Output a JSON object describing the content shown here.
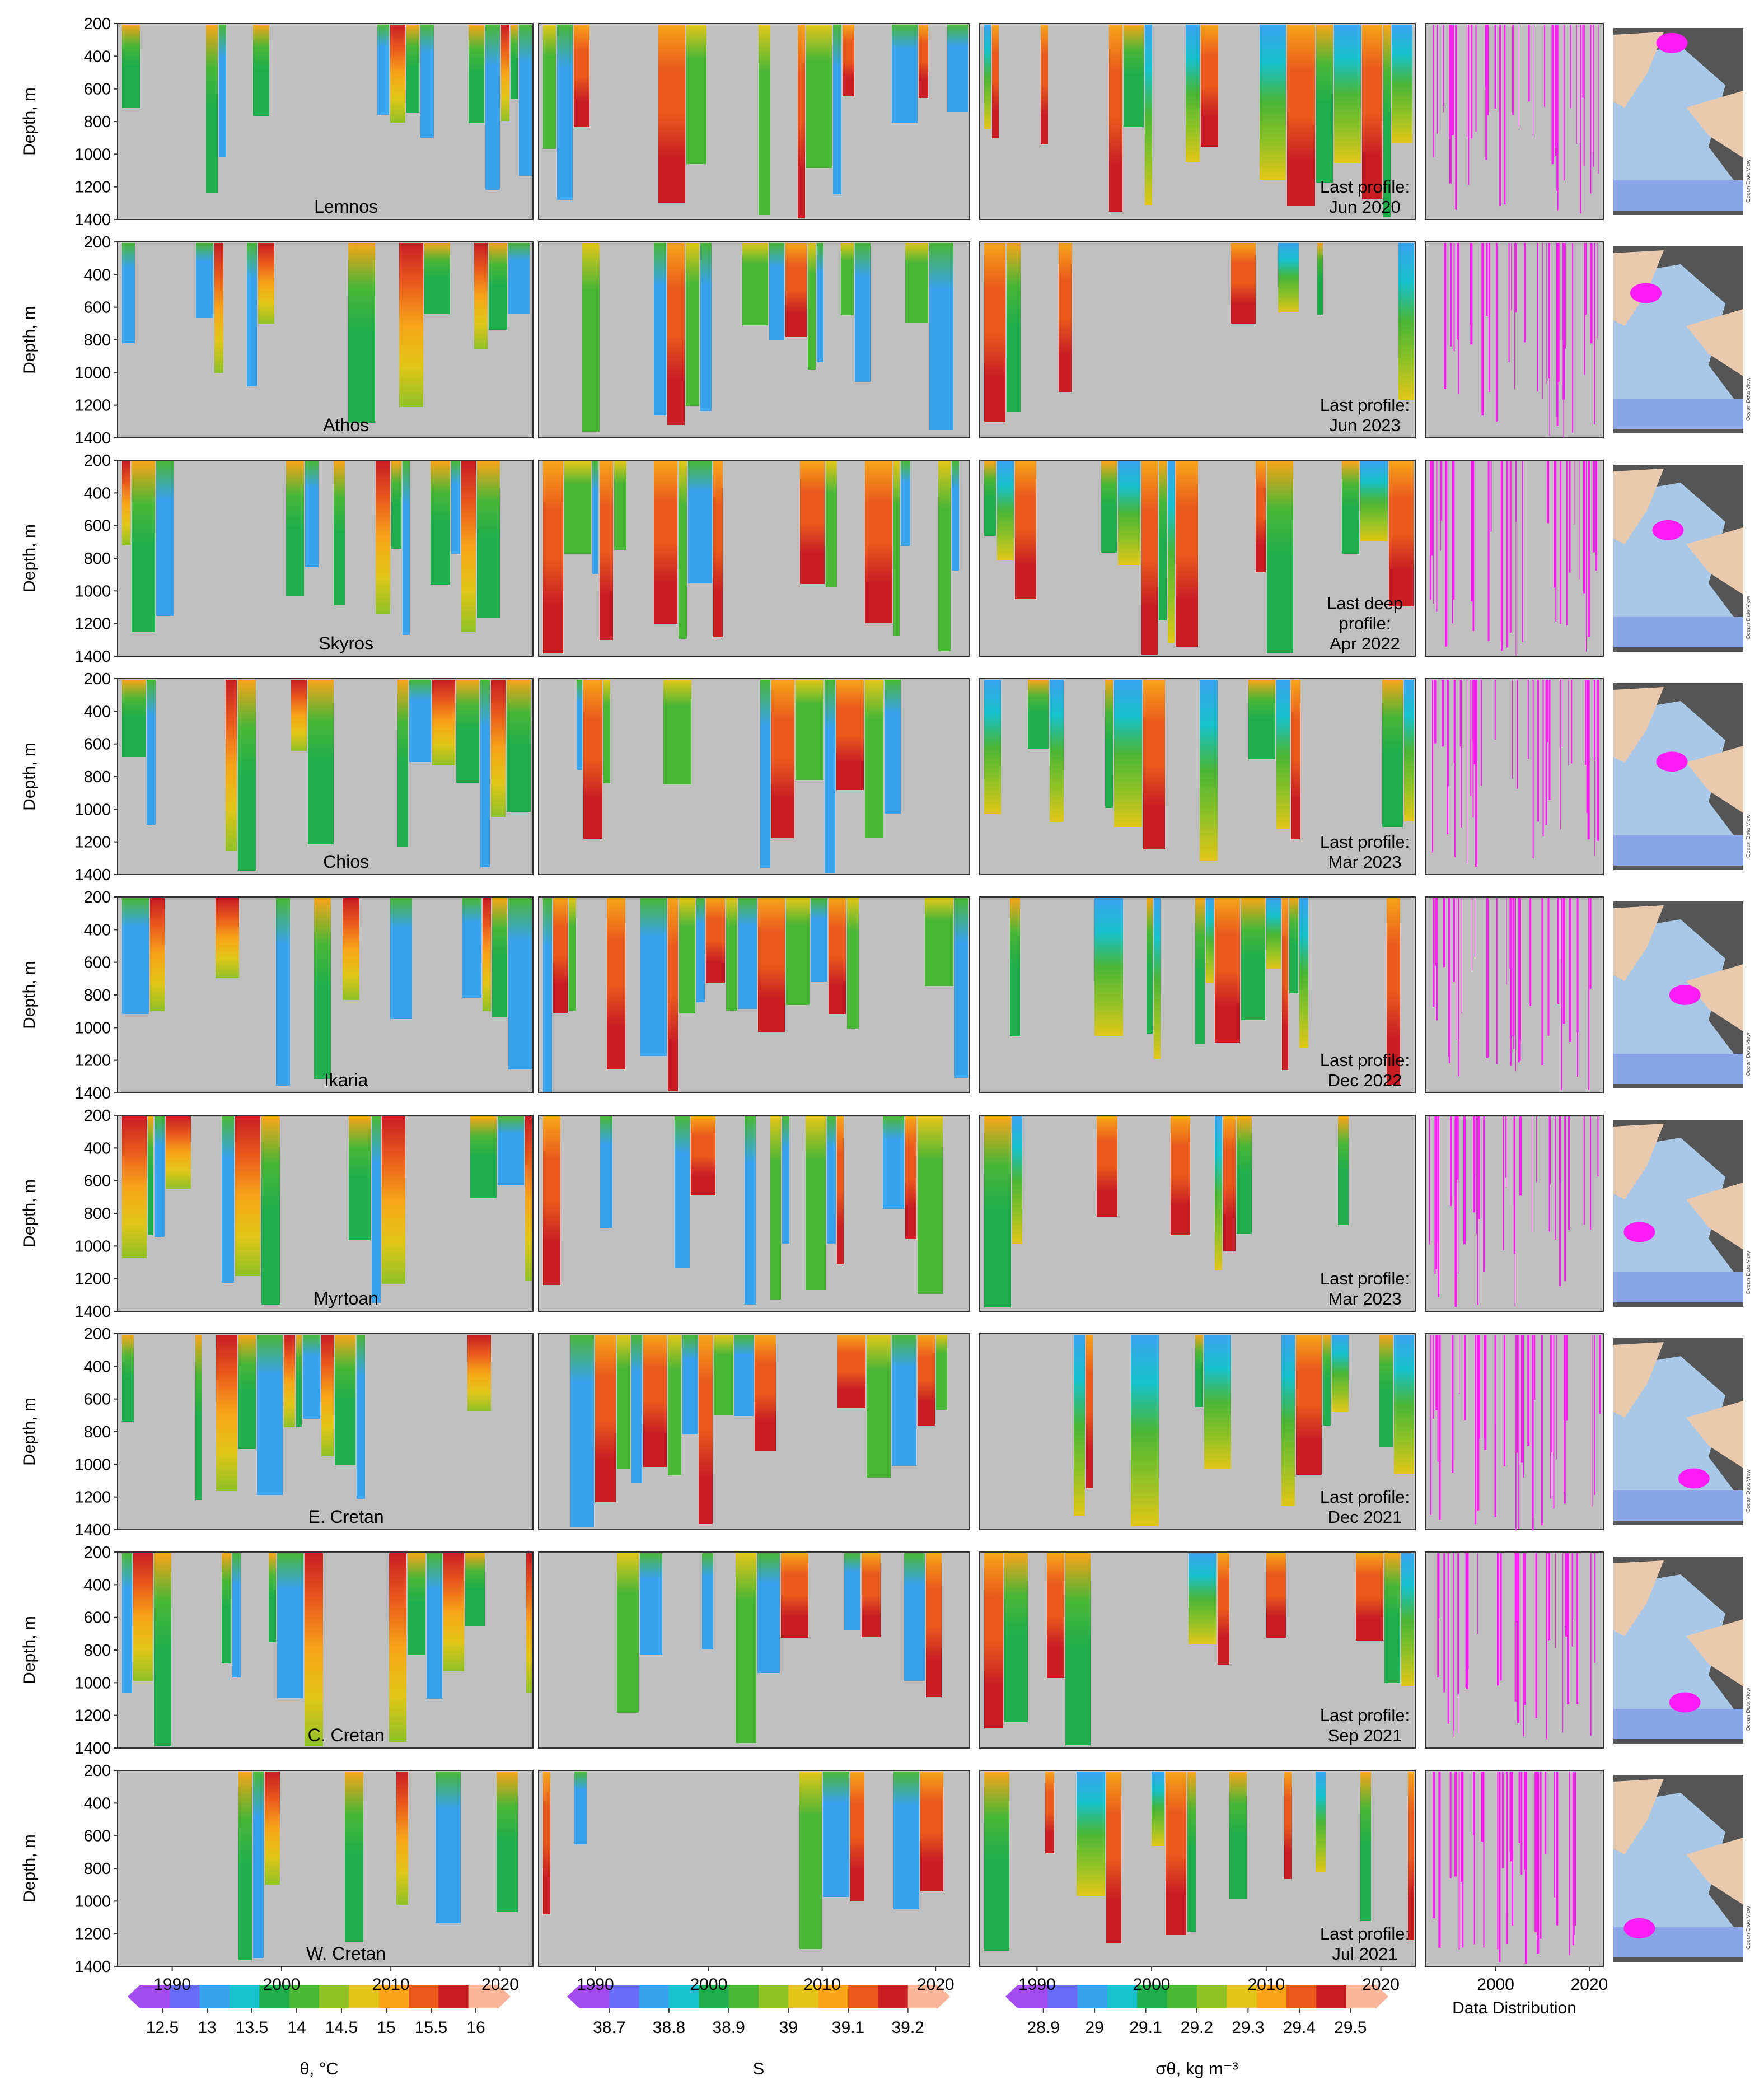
{
  "rows": [
    {
      "region": "Lemnos",
      "note_lines": [
        "Last profile:",
        "Jun 2020"
      ]
    },
    {
      "region": "Athos",
      "note_lines": [
        "Last profile:",
        "Jun 2023"
      ]
    },
    {
      "region": "Skyros",
      "note_lines": [
        "Last deep",
        "profile:",
        "Apr 2022"
      ]
    },
    {
      "region": "Chios",
      "note_lines": [
        "Last profile:",
        "Mar 2023"
      ]
    },
    {
      "region": "Ikaria",
      "note_lines": [
        "Last profile:",
        "Dec 2022"
      ]
    },
    {
      "region": "Myrtoan",
      "note_lines": [
        "Last profile:",
        "Mar 2023"
      ]
    },
    {
      "region": "E. Cretan",
      "note_lines": [
        "Last profile:",
        "Dec 2021"
      ]
    },
    {
      "region": "C. Cretan",
      "note_lines": [
        "Last profile:",
        "Sep 2021"
      ]
    },
    {
      "region": "W. Cretan",
      "note_lines": [
        "Last profile:",
        "Jul 2021"
      ]
    }
  ],
  "y_axis_label": "Depth, m",
  "data_dist_label": "Data Distribution",
  "map_watermark": "Ocean Data View",
  "colorbars": [
    {
      "label": "θ, °C",
      "ticks": [
        "12.5",
        "13",
        "13.5",
        "14",
        "14.5",
        "15",
        "15.5",
        "16"
      ],
      "colors": [
        "#a24cf0",
        "#6a6cf5",
        "#3aa3f0",
        "#17c2cc",
        "#1fae4d",
        "#49b636",
        "#8fc126",
        "#e2c617",
        "#f7a418",
        "#ea5a1c",
        "#c91d24",
        "#f9b69a"
      ]
    },
    {
      "label": "S",
      "ticks": [
        "38.7",
        "38.8",
        "38.9",
        "39",
        "39.1",
        "39.2"
      ],
      "colors": [
        "#a24cf0",
        "#6a6cf5",
        "#3aa3f0",
        "#17c2cc",
        "#1fae4d",
        "#49b636",
        "#8fc126",
        "#e2c617",
        "#f7a418",
        "#ea5a1c",
        "#c91d24",
        "#f9b69a"
      ]
    },
    {
      "label": "σθ, kg m⁻³",
      "ticks": [
        "28.9",
        "29",
        "29.1",
        "29.2",
        "29.3",
        "29.4",
        "29.5"
      ],
      "colors": [
        "#a24cf0",
        "#6a6cf5",
        "#3aa3f0",
        "#17c2cc",
        "#1fae4d",
        "#49b636",
        "#8fc126",
        "#e2c617",
        "#f7a418",
        "#ea5a1c",
        "#c91d24",
        "#f9b69a"
      ]
    }
  ],
  "chart_data": {
    "type": "heatmap",
    "panels": [
      "θ, °C",
      "S",
      "σθ, kg m⁻³",
      "Data Distribution"
    ],
    "ylabel": "Depth, m",
    "ylim": [
      200,
      1400
    ],
    "yticks": [
      200,
      400,
      600,
      800,
      1000,
      1200,
      1400
    ],
    "y_inverted": true,
    "main_xticks": [
      1990,
      2000,
      2010,
      2020
    ],
    "dist_xticks": [
      2000,
      2020
    ],
    "scales": {
      "θ, °C": [
        12.5,
        16
      ],
      "S": [
        38.7,
        39.25
      ],
      "σθ, kg m⁻³": [
        28.9,
        29.55
      ]
    },
    "colorbar_ticks": {
      "θ, °C": [
        12.5,
        13,
        13.5,
        14,
        14.5,
        15,
        15.5,
        16
      ],
      "S": [
        38.7,
        38.8,
        38.9,
        39,
        39.1,
        39.2
      ],
      "σθ, kg m⁻³": [
        28.9,
        29,
        29.1,
        29.2,
        29.3,
        29.4,
        29.5
      ]
    }
  }
}
